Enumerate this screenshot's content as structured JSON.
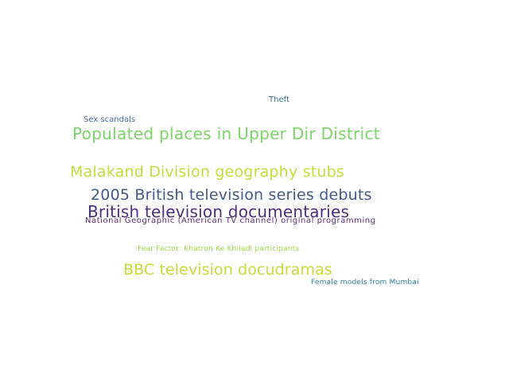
{
  "words": [
    {
      "text": "Theft",
      "color": "#3b6e8f"
    },
    {
      "text": "Sex scandals",
      "color": "#4a6a9a"
    },
    {
      "text": "Populated places in Upper Dir District",
      "color": "#7ed36b"
    },
    {
      "text": "Malakand Division geography stubs",
      "color": "#c2de3f"
    },
    {
      "text": "2005 British television series debuts",
      "color": "#44598c"
    },
    {
      "text": "British television documentaries",
      "color": "#4b2f7a"
    },
    {
      "text": "National Geographic (American TV channel) original programming",
      "color": "#5b2e7b"
    },
    {
      "text": "Fear Factor: Khatron Ke Khiladi participants",
      "color": "#a6d64c"
    },
    {
      "text": "BBC television docudramas",
      "color": "#c7dc3a"
    },
    {
      "text": "Female models from Mumbai",
      "color": "#3a7f9a"
    }
  ]
}
